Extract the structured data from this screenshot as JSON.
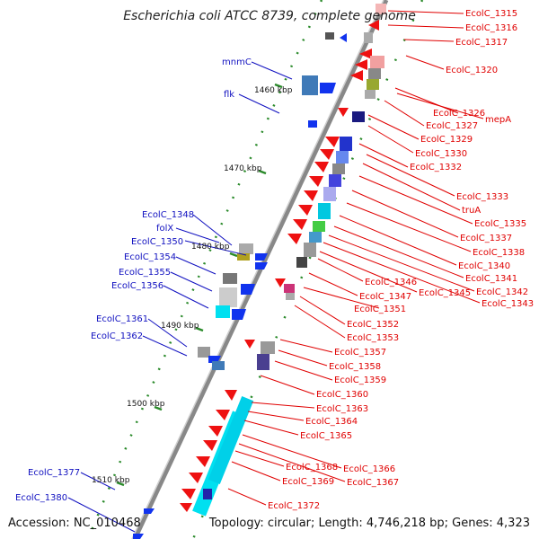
{
  "title": "Escherichia coli ATCC 8739, complete genome",
  "footer": {
    "accession": "Accession: NC_010468",
    "topology": "Topology: circular; Length: 4,746,218 bp; Genes: 4,323"
  },
  "colors": {
    "forward_gene": "#ee1111",
    "reverse_gene": "#1133ee",
    "backbone": "#888888",
    "label_right": "#e00000",
    "label_left": "#1010c0",
    "tick": "#2a8a2a"
  },
  "scale_labels": [
    "1460 kbp",
    "1470 kbp",
    "1480 kbp",
    "1490 kbp",
    "1500 kbp",
    "1510 kbp"
  ],
  "right_labels": [
    "EcolC_1315",
    "EcolC_1316",
    "EcolC_1317",
    "EcolC_1320",
    "EcolC_1326",
    "mepA",
    "EcolC_1327",
    "EcolC_1329",
    "EcolC_1330",
    "EcolC_1332",
    "EcolC_1333",
    "truA",
    "EcolC_1335",
    "EcolC_1337",
    "EcolC_1338",
    "EcolC_1340",
    "EcolC_1341",
    "EcolC_1342",
    "EcolC_1343",
    "EcolC_1345",
    "EcolC_1346",
    "EcolC_1347",
    "EcolC_1351",
    "EcolC_1352",
    "EcolC_1353",
    "EcolC_1357",
    "EcolC_1358",
    "EcolC_1359",
    "EcolC_1360",
    "EcolC_1363",
    "EcolC_1364",
    "EcolC_1365",
    "EcolC_1366",
    "EcolC_1367",
    "EcolC_1368",
    "EcolC_1369",
    "EcolC_1372"
  ],
  "left_labels": [
    "mnmC",
    "flk",
    "EcolC_1348",
    "folX",
    "EcolC_1350",
    "EcolC_1354",
    "EcolC_1355",
    "EcolC_1356",
    "EcolC_1361",
    "EcolC_1362",
    "EcolC_1377",
    "EcolC_1380"
  ]
}
